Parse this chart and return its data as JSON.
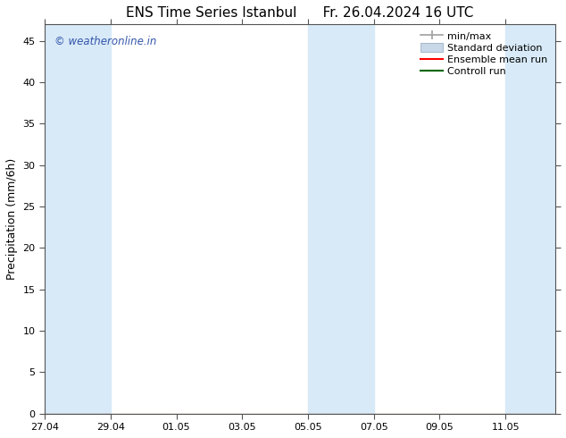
{
  "title_left": "ENS Time Series Istanbul",
  "title_right": "Fr. 26.04.2024 16 UTC",
  "ylabel": "Precipitation (mm/6h)",
  "ylim": [
    0,
    47
  ],
  "yticks": [
    0,
    5,
    10,
    15,
    20,
    25,
    30,
    35,
    40,
    45
  ],
  "xtick_labels": [
    "27.04",
    "29.04",
    "01.05",
    "03.05",
    "05.05",
    "07.05",
    "09.05",
    "11.05"
  ],
  "xtick_days": [
    0,
    2,
    4,
    6,
    8,
    10,
    12,
    14
  ],
  "xlim": [
    0,
    15.5
  ],
  "shaded_regions": [
    [
      0,
      1
    ],
    [
      1,
      2
    ],
    [
      8,
      9
    ],
    [
      9,
      10
    ],
    [
      14,
      15
    ],
    [
      15,
      15.5
    ]
  ],
  "band_color": "#d8eaf8",
  "background_color": "#ffffff",
  "watermark_text": "© weatheronline.in",
  "watermark_color": "#3355aa",
  "legend_minmax_color": "#a0a0a0",
  "legend_std_color": "#c8d8e8",
  "legend_mean_color": "#ff0000",
  "legend_ctrl_color": "#006600",
  "title_fontsize": 11,
  "legend_fontsize": 8,
  "tick_fontsize": 8,
  "ylabel_fontsize": 9
}
